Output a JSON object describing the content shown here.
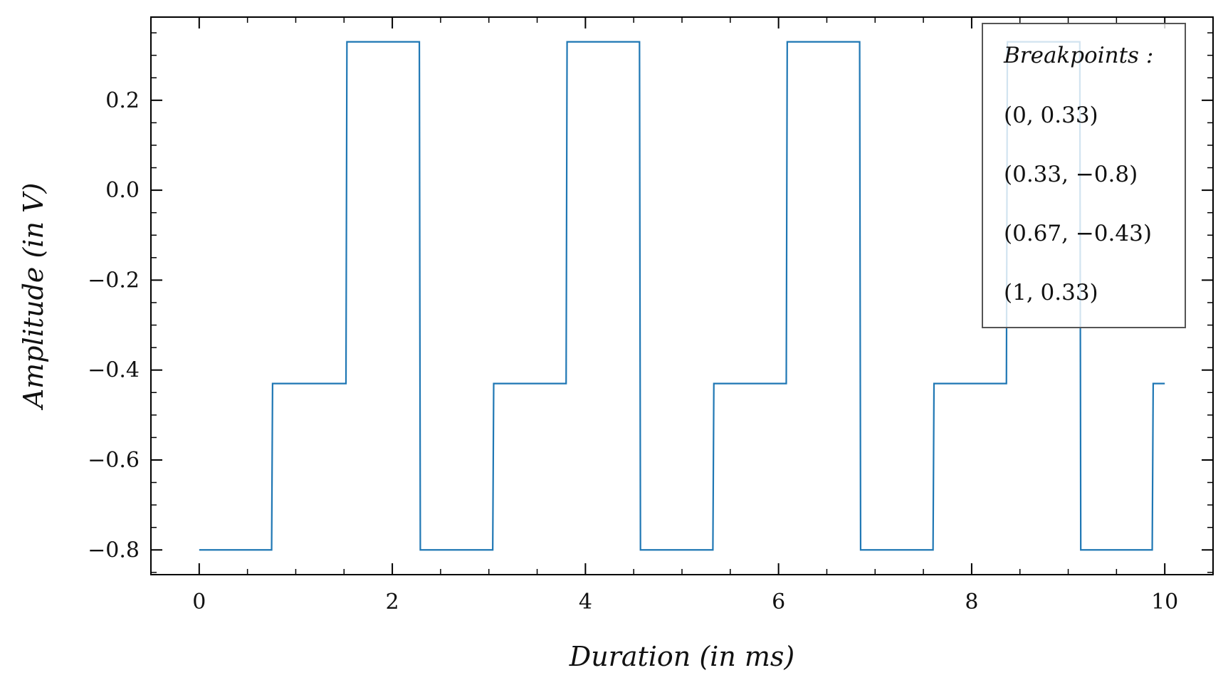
{
  "chart_data": {
    "type": "line",
    "title": "",
    "xlabel": "Duration (in ms)",
    "ylabel": "Amplitude (in V)",
    "xlim": [
      -0.5,
      10.5
    ],
    "ylim": [
      -0.855,
      0.385
    ],
    "xticks": [
      0,
      2,
      4,
      6,
      8,
      10
    ],
    "xtick_labels": [
      "0",
      "2",
      "4",
      "6",
      "8",
      "10"
    ],
    "yticks": [
      0.2,
      0.0,
      -0.2,
      -0.4,
      -0.6,
      -0.8
    ],
    "ytick_labels": [
      "0.2",
      "0.0",
      "−0.2",
      "−0.4",
      "−0.6",
      "−0.8"
    ],
    "grid": false,
    "line_color": "#1f77b4",
    "series": [
      {
        "x": [
          0,
          0.75,
          0.76,
          1.52,
          1.53,
          2.28,
          2.29,
          3.04,
          3.05,
          3.8,
          3.81,
          4.56,
          4.57,
          5.32,
          5.33,
          6.08,
          6.09,
          6.84,
          6.85,
          7.6,
          7.61,
          8.36,
          8.37,
          9.12,
          9.13,
          9.87,
          9.88,
          10.0
        ],
        "y": [
          -0.8,
          -0.8,
          -0.43,
          -0.43,
          0.33,
          0.33,
          -0.8,
          -0.8,
          -0.43,
          -0.43,
          0.33,
          0.33,
          -0.8,
          -0.8,
          -0.43,
          -0.43,
          0.33,
          0.33,
          -0.8,
          -0.8,
          -0.43,
          -0.43,
          0.33,
          0.33,
          -0.8,
          -0.8,
          -0.43,
          -0.43
        ]
      }
    ],
    "legend": {
      "placement": "top-right",
      "title": "Breakpoints :",
      "entries": [
        "(0, 0.33)",
        "(0.33, −0.8)",
        "(0.67, −0.43)",
        "(1, 0.33)"
      ]
    }
  }
}
